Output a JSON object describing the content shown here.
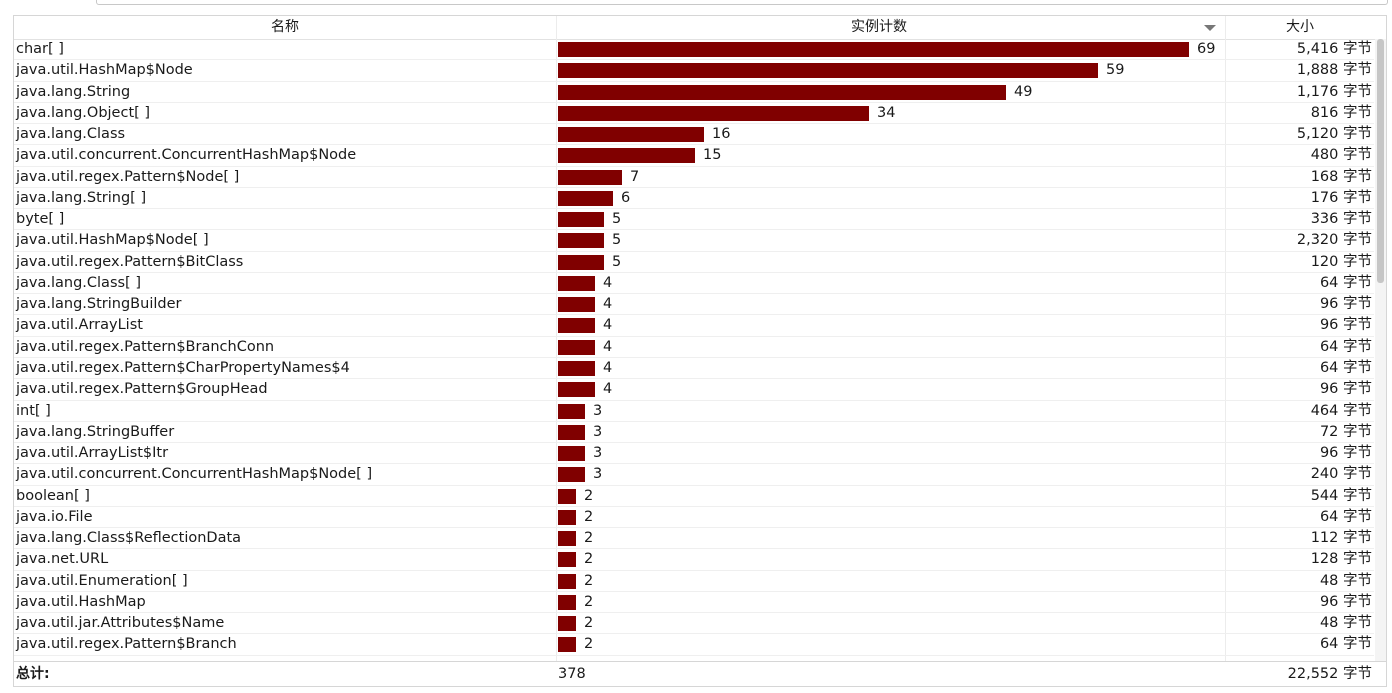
{
  "columns": {
    "name": "名称",
    "count": "实例计数",
    "size": "大小"
  },
  "accent_color": "#800000",
  "sort_icon": "chevron-down-icon",
  "rows": [
    {
      "name": "char[ ]",
      "count": 69,
      "size": "5,416 字节"
    },
    {
      "name": "java.util.HashMap$Node",
      "count": 59,
      "size": "1,888 字节"
    },
    {
      "name": "java.lang.String",
      "count": 49,
      "size": "1,176 字节"
    },
    {
      "name": "java.lang.Object[ ]",
      "count": 34,
      "size": "816 字节"
    },
    {
      "name": "java.lang.Class",
      "count": 16,
      "size": "5,120 字节"
    },
    {
      "name": "java.util.concurrent.ConcurrentHashMap$Node",
      "count": 15,
      "size": "480 字节"
    },
    {
      "name": "java.util.regex.Pattern$Node[ ]",
      "count": 7,
      "size": "168 字节"
    },
    {
      "name": "java.lang.String[ ]",
      "count": 6,
      "size": "176 字节"
    },
    {
      "name": "byte[ ]",
      "count": 5,
      "size": "336 字节"
    },
    {
      "name": "java.util.HashMap$Node[ ]",
      "count": 5,
      "size": "2,320 字节"
    },
    {
      "name": "java.util.regex.Pattern$BitClass",
      "count": 5,
      "size": "120 字节"
    },
    {
      "name": "java.lang.Class[ ]",
      "count": 4,
      "size": "64 字节"
    },
    {
      "name": "java.lang.StringBuilder",
      "count": 4,
      "size": "96 字节"
    },
    {
      "name": "java.util.ArrayList",
      "count": 4,
      "size": "96 字节"
    },
    {
      "name": "java.util.regex.Pattern$BranchConn",
      "count": 4,
      "size": "64 字节"
    },
    {
      "name": "java.util.regex.Pattern$CharPropertyNames$4",
      "count": 4,
      "size": "64 字节"
    },
    {
      "name": "java.util.regex.Pattern$GroupHead",
      "count": 4,
      "size": "96 字节"
    },
    {
      "name": "int[ ]",
      "count": 3,
      "size": "464 字节"
    },
    {
      "name": "java.lang.StringBuffer",
      "count": 3,
      "size": "72 字节"
    },
    {
      "name": "java.util.ArrayList$Itr",
      "count": 3,
      "size": "96 字节"
    },
    {
      "name": "java.util.concurrent.ConcurrentHashMap$Node[ ]",
      "count": 3,
      "size": "240 字节"
    },
    {
      "name": "boolean[ ]",
      "count": 2,
      "size": "544 字节"
    },
    {
      "name": "java.io.File",
      "count": 2,
      "size": "64 字节"
    },
    {
      "name": "java.lang.Class$ReflectionData",
      "count": 2,
      "size": "112 字节"
    },
    {
      "name": "java.net.URL",
      "count": 2,
      "size": "128 字节"
    },
    {
      "name": "java.util.Enumeration[ ]",
      "count": 2,
      "size": "48 字节"
    },
    {
      "name": "java.util.HashMap",
      "count": 2,
      "size": "96 字节"
    },
    {
      "name": "java.util.jar.Attributes$Name",
      "count": 2,
      "size": "48 字节"
    },
    {
      "name": "java.util.regex.Pattern$Branch",
      "count": 2,
      "size": "64 字节"
    }
  ],
  "footer": {
    "label": "总计:",
    "total_count": "378",
    "total_size": "22,552 字节"
  }
}
